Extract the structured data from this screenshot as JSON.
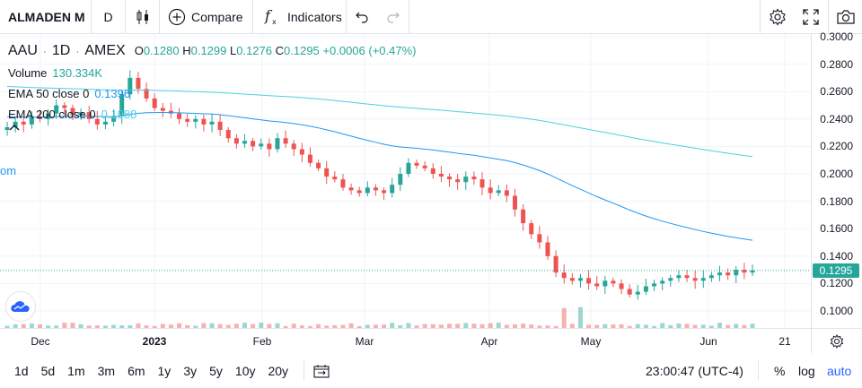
{
  "toolbar": {
    "symbol": "ALMADEN M",
    "interval": "D",
    "compare_label": "Compare",
    "indicators_label": "Indicators"
  },
  "legend": {
    "ticker": "AAU",
    "interval": "1D",
    "exchange": "AMEX",
    "open_label": "O",
    "open": "0.1280",
    "high_label": "H",
    "high": "0.1299",
    "low_label": "L",
    "low": "0.1276",
    "close_label": "C",
    "close": "0.1295",
    "change": "+0.0006 (+0.47%)",
    "volume_label": "Volume",
    "volume": "130.334K",
    "ema50_label": "EMA 50 close 0",
    "ema50": "0.1396",
    "ema200_label": "EMA 200 close 0",
    "ema200": "0.1988",
    "cutoff_text": "om"
  },
  "price_axis": {
    "ticks": [
      "0.3000",
      "0.2800",
      "0.2600",
      "0.2400",
      "0.2200",
      "0.2000",
      "0.1800",
      "0.1600",
      "0.1400",
      "0.1200",
      "0.1000"
    ],
    "last_price": "0.1295"
  },
  "time_axis": {
    "ticks": [
      {
        "label": "Dec",
        "bold": false
      },
      {
        "label": "2023",
        "bold": true
      },
      {
        "label": "Feb",
        "bold": false
      },
      {
        "label": "Mar",
        "bold": false
      },
      {
        "label": "Apr",
        "bold": false
      },
      {
        "label": "May",
        "bold": false
      },
      {
        "label": "Jun",
        "bold": false
      },
      {
        "label": "21",
        "bold": false
      }
    ]
  },
  "bottom": {
    "ranges": [
      "1d",
      "5d",
      "1m",
      "3m",
      "6m",
      "1y",
      "3y",
      "5y",
      "10y",
      "20y"
    ],
    "clock": "23:00:47 (UTC-4)",
    "percent": "%",
    "log": "log",
    "auto": "auto"
  },
  "colors": {
    "up": "#26a69a",
    "down": "#ef5350",
    "ema50": "#2196f3",
    "ema200": "#4dd0e1",
    "accent": "#2962ff"
  },
  "chart_data": {
    "type": "candlestick",
    "ylim": [
      0.09,
      0.305
    ],
    "series_closes_approx": [
      0.234,
      0.238,
      0.236,
      0.242,
      0.24,
      0.244,
      0.25,
      0.248,
      0.243,
      0.245,
      0.24,
      0.236,
      0.238,
      0.242,
      0.258,
      0.27,
      0.262,
      0.255,
      0.248,
      0.246,
      0.244,
      0.24,
      0.238,
      0.24,
      0.236,
      0.238,
      0.232,
      0.226,
      0.222,
      0.224,
      0.22,
      0.222,
      0.218,
      0.226,
      0.222,
      0.218,
      0.214,
      0.208,
      0.204,
      0.198,
      0.196,
      0.19,
      0.188,
      0.186,
      0.19,
      0.188,
      0.186,
      0.192,
      0.2,
      0.208,
      0.206,
      0.204,
      0.2,
      0.198,
      0.196,
      0.194,
      0.198,
      0.196,
      0.19,
      0.186,
      0.188,
      0.184,
      0.174,
      0.164,
      0.156,
      0.15,
      0.14,
      0.128,
      0.124,
      0.122,
      0.124,
      0.12,
      0.118,
      0.122,
      0.12,
      0.116,
      0.112,
      0.114,
      0.118,
      0.12,
      0.122,
      0.124,
      0.126,
      0.124,
      0.122,
      0.124,
      0.126,
      0.128,
      0.126,
      0.13,
      0.128,
      0.1295
    ],
    "ema50_last": 0.1396,
    "ema200_last": 0.1988
  }
}
